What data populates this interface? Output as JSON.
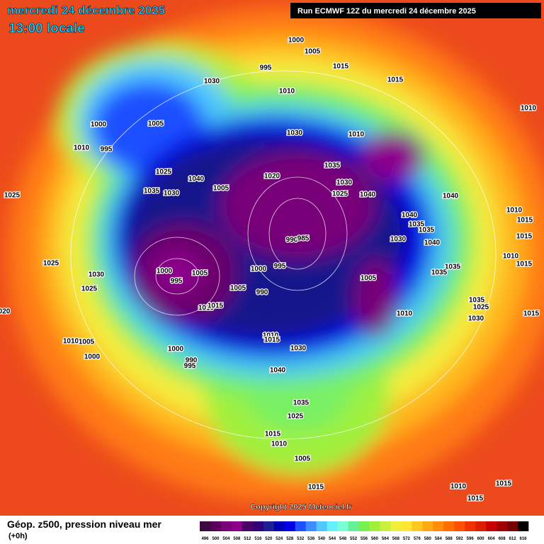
{
  "header": {
    "date_line": "mercredi 24 décembre 2025",
    "time_line": "13:00 locale",
    "run": "Run ECMWF 12Z du mercredi 24 décembre 2025"
  },
  "isobar_labels": [
    "1000",
    "1005",
    "995",
    "1015",
    "1030",
    "1010",
    "1015",
    "1010",
    "1000",
    "1005",
    "1030",
    "1010",
    "1010",
    "995",
    "1025",
    "1035",
    "1020",
    "1040",
    "1030",
    "1035",
    "1030",
    "1005",
    "1025",
    "1040",
    "1040",
    "1025",
    "1010",
    "1040",
    "1035",
    "1035",
    "1015",
    "990",
    "985",
    "1030",
    "1040",
    "1015",
    "1010",
    "1025",
    "1000",
    "995",
    "1005",
    "1000",
    "995",
    "1030",
    "1005",
    "1035",
    "1035",
    "1015",
    "1025",
    "1005",
    "990",
    "1010",
    "1015",
    "1010",
    "1035",
    "1025",
    "1015",
    "1030",
    "020",
    "1010",
    "1015",
    "1010",
    "1005",
    "1000",
    "1030",
    "1000",
    "990",
    "995",
    "1040",
    "1035",
    "1025",
    "1015",
    "1010",
    "1005",
    "1015",
    "1010",
    "1015",
    "1015"
  ],
  "copyright": "Copyright 2025 Meteociel.fr",
  "legend": {
    "title": "Géop. z500, pression niveau mer",
    "lead": "(+0h)",
    "labels": [
      496,
      500,
      504,
      508,
      512,
      516,
      520,
      524,
      528,
      532,
      536,
      540,
      544,
      548,
      552,
      556,
      560,
      564,
      568,
      572,
      576,
      580,
      584,
      588,
      592,
      596,
      600,
      604,
      608,
      612,
      616
    ],
    "colors": [
      "#3c0a3c",
      "#5a005a",
      "#780078",
      "#8c008c",
      "#4b0064",
      "#320078",
      "#1e1e96",
      "#0000b4",
      "#0000e6",
      "#1e50ff",
      "#3c8cff",
      "#50c8ff",
      "#64f0ff",
      "#78ffd2",
      "#64f096",
      "#78f050",
      "#a0f03c",
      "#c8f03c",
      "#f0f03c",
      "#ffe632",
      "#ffc81e",
      "#ffaa14",
      "#ff8c0a",
      "#ff6e00",
      "#ff5000",
      "#f03200",
      "#dc1e00",
      "#c80000",
      "#a00000",
      "#780000",
      "#000000"
    ]
  }
}
